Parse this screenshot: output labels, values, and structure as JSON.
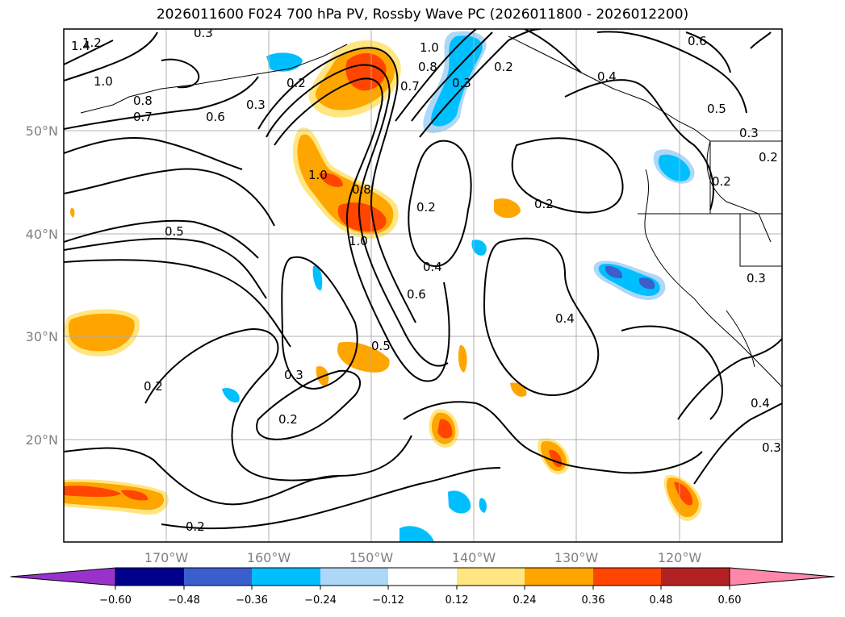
{
  "title": "2026011600 F024 700 hPa PV, Rossby Wave PC (2026011800 - 2026012200)",
  "map": {
    "lat_labels": [
      "50°N",
      "40°N",
      "30°N",
      "20°N"
    ],
    "lon_labels": [
      "170°W",
      "160°W",
      "150°W",
      "140°W",
      "130°W",
      "120°W"
    ],
    "contour_labels": [
      "1.4",
      "1.2",
      "1.0",
      "0.8",
      "0.7",
      "0.6",
      "0.3",
      "0.2",
      "1.0",
      "0.8",
      "0.7",
      "0.3",
      "0.2",
      "0.4",
      "0.6",
      "0.5",
      "0.3",
      "0.2",
      "0.2",
      "1.0",
      "0.8",
      "1.0",
      "0.5",
      "0.2",
      "0.4",
      "0.6",
      "0.2",
      "0.4",
      "0.5",
      "0.3",
      "0.2",
      "0.2",
      "0.2",
      "0.3",
      "0.4",
      "0.3",
      "0.3"
    ],
    "colors": {
      "very_negative": "#9932cc",
      "neg_060": "#00008b",
      "neg_048": "#3a5fcd",
      "neg_036": "#00bfff",
      "neg_024": "#add8f7",
      "neutral": "#ffffff",
      "pos_012": "#ffe680",
      "pos_024": "#ffa500",
      "pos_036": "#ff4500",
      "pos_048": "#b22222",
      "very_positive": "#ff88aa"
    }
  },
  "colorbar": {
    "ticks": [
      "−0.60",
      "−0.48",
      "−0.36",
      "−0.24",
      "−0.12",
      "0.12",
      "0.24",
      "0.36",
      "0.48",
      "0.60"
    ],
    "colors": [
      "#9932cc",
      "#00008b",
      "#3a5fcd",
      "#00bfff",
      "#add8f7",
      "#ffffff",
      "#ffe680",
      "#ffa500",
      "#ff4500",
      "#b22222",
      "#ff88aa"
    ]
  }
}
